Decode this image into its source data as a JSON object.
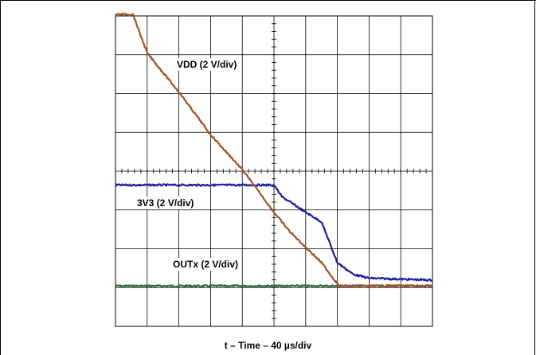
{
  "chart_data": {
    "type": "line",
    "title": "",
    "xlabel": "t – Time – 40 µs/div",
    "ylabel": "",
    "grid": true,
    "x_divisions": 10,
    "y_divisions": 8,
    "xlim": [
      0,
      400
    ],
    "x_unit": "µs",
    "series": [
      {
        "name": "VDD (2 V/div)",
        "color": "#a0522d",
        "points": [
          [
            0,
            7.0
          ],
          [
            10,
            7.0
          ],
          [
            22,
            7.0
          ],
          [
            40,
            6.0
          ],
          [
            80,
            5.0
          ],
          [
            120,
            3.9
          ],
          [
            160,
            3.0
          ],
          [
            200,
            1.9
          ],
          [
            220,
            1.4
          ],
          [
            240,
            1.0
          ],
          [
            260,
            0.6
          ],
          [
            282,
            0.0
          ],
          [
            320,
            0.0
          ],
          [
            400,
            0.0
          ]
        ]
      },
      {
        "name": "3V3 (2 V/div)",
        "color": "#1f1f9e",
        "points": [
          [
            0,
            2.6
          ],
          [
            100,
            2.6
          ],
          [
            190,
            2.6
          ],
          [
            200,
            2.6
          ],
          [
            210,
            2.3
          ],
          [
            240,
            1.9
          ],
          [
            260,
            1.65
          ],
          [
            280,
            0.6
          ],
          [
            300,
            0.3
          ],
          [
            320,
            0.2
          ],
          [
            400,
            0.15
          ]
        ]
      },
      {
        "name": "OUTx (2 V/div)",
        "color": "#2f6a3c",
        "points": [
          [
            0,
            0.0
          ],
          [
            100,
            0.0
          ],
          [
            200,
            0.0
          ],
          [
            260,
            0.0
          ],
          [
            300,
            0.0
          ],
          [
            400,
            0.0
          ]
        ]
      }
    ]
  }
}
